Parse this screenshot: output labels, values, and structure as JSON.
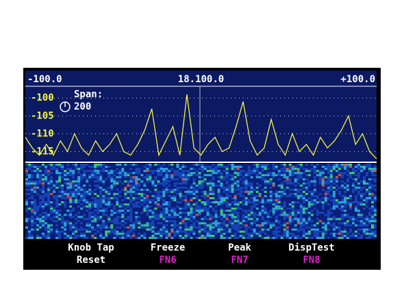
{
  "chart_data": {
    "type": "line",
    "xticks": [
      {
        "value": -100,
        "label": "-100.0"
      },
      {
        "value": 0,
        "label": "18.100.0"
      },
      {
        "value": 100,
        "label": "+100.0"
      }
    ],
    "yticks": [
      -100,
      -105,
      -110,
      -115
    ],
    "xlim": [
      -100,
      100
    ],
    "ylim": [
      -118,
      -96.7
    ],
    "grid": true,
    "annotations": [
      "Span:",
      "200"
    ],
    "x": [
      -100,
      -96,
      -92,
      -88,
      -84,
      -80,
      -76,
      -72,
      -68,
      -64,
      -60,
      -56,
      -52,
      -48,
      -44,
      -40,
      -36,
      -32,
      -28,
      -24,
      -20,
      -16,
      -12,
      -8,
      -4,
      0,
      4,
      8,
      12,
      16,
      20,
      24,
      28,
      32,
      36,
      40,
      44,
      48,
      52,
      56,
      60,
      64,
      68,
      72,
      76,
      80,
      84,
      88,
      92,
      96,
      100
    ],
    "series": [
      {
        "color": "#f5f542",
        "values": [
          -111,
          -114,
          -116,
          -113,
          -116,
          -112,
          -115,
          -110,
          -114,
          -116,
          -112,
          -115,
          -113,
          -110,
          -115,
          -116,
          -113,
          -109,
          -103,
          -116,
          -112,
          -108,
          -116,
          -99,
          -114,
          -116,
          -113,
          -111,
          -115,
          -114,
          -108,
          -101,
          -112,
          -116,
          -114,
          -106,
          -113,
          -116,
          -110,
          -115,
          -113,
          -116,
          -111,
          -114,
          -112,
          -109,
          -105,
          -113,
          -110,
          -115,
          -117
        ]
      }
    ]
  },
  "softkeys": [
    {
      "label": "Knob Tap",
      "sub": "Reset"
    },
    {
      "label": "Freeze",
      "sub": "FN6"
    },
    {
      "label": "Peak",
      "sub": "FN7"
    },
    {
      "label": "DispTest",
      "sub": "FN8"
    }
  ]
}
